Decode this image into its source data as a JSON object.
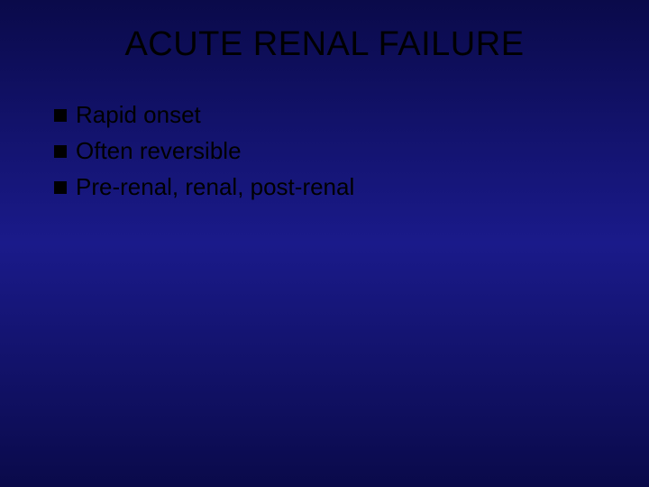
{
  "slide": {
    "title": "ACUTE RENAL FAILURE",
    "title_fontsize": 38,
    "title_color": "#000000",
    "background_gradient": [
      "#0a0a4a",
      "#1a1a8a",
      "#0a0a4a"
    ],
    "bullets": [
      {
        "text": "Rapid onset"
      },
      {
        "text": "Often reversible"
      },
      {
        "text": "Pre-renal, renal, post-renal"
      }
    ],
    "bullet_fontsize": 26,
    "bullet_color": "#000000",
    "bullet_marker_color": "#000000",
    "bullet_marker_size": 14,
    "font_family": "Verdana"
  }
}
